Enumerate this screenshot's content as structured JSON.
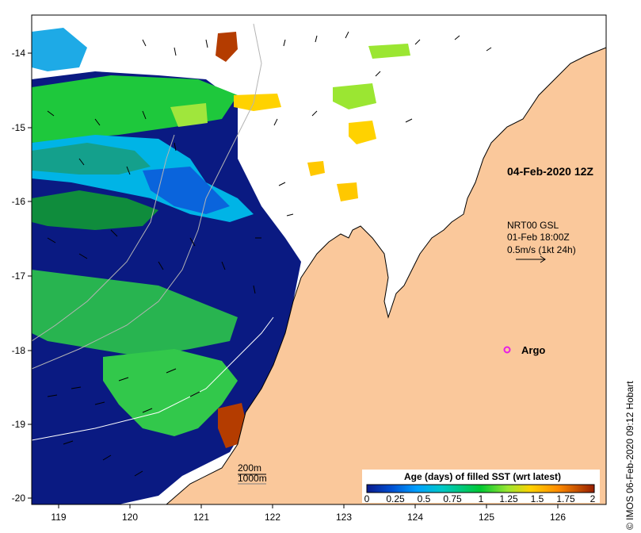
{
  "map": {
    "lon_ticks": [
      "119",
      "120",
      "121",
      "122",
      "123",
      "124",
      "125",
      "126"
    ],
    "lat_ticks": [
      "-14",
      "-15",
      "-16",
      "-17",
      "-18",
      "-19",
      "-20"
    ],
    "date_label": "04-Feb-2020 12Z",
    "current_source": {
      "line1": "NRT00 GSL",
      "line2": "01-Feb 18:00Z",
      "line3": "0.5m/s (1kt 24h)"
    },
    "argo_label": "Argo",
    "isobaths": [
      "200m",
      "1000m"
    ],
    "copyright": "© IMOS 06-Feb-2020 09:12 Hobart"
  },
  "colorbar": {
    "title": "Age (days) of filled SST (wrt latest)",
    "ticks": [
      "0",
      "0.25",
      "0.5",
      "0.75",
      "1",
      "1.25",
      "1.5",
      "1.75",
      "2"
    ],
    "colors": [
      "#0a1a8c",
      "#0050d2",
      "#00a0ff",
      "#00c8c8",
      "#00c832",
      "#9be632",
      "#ffd200",
      "#ff8c00",
      "#c83c00",
      "#961e00"
    ]
  },
  "colors": {
    "land": "#fac89b",
    "ocean_deep": "#0a1a82",
    "cloud": "#ffffff"
  }
}
